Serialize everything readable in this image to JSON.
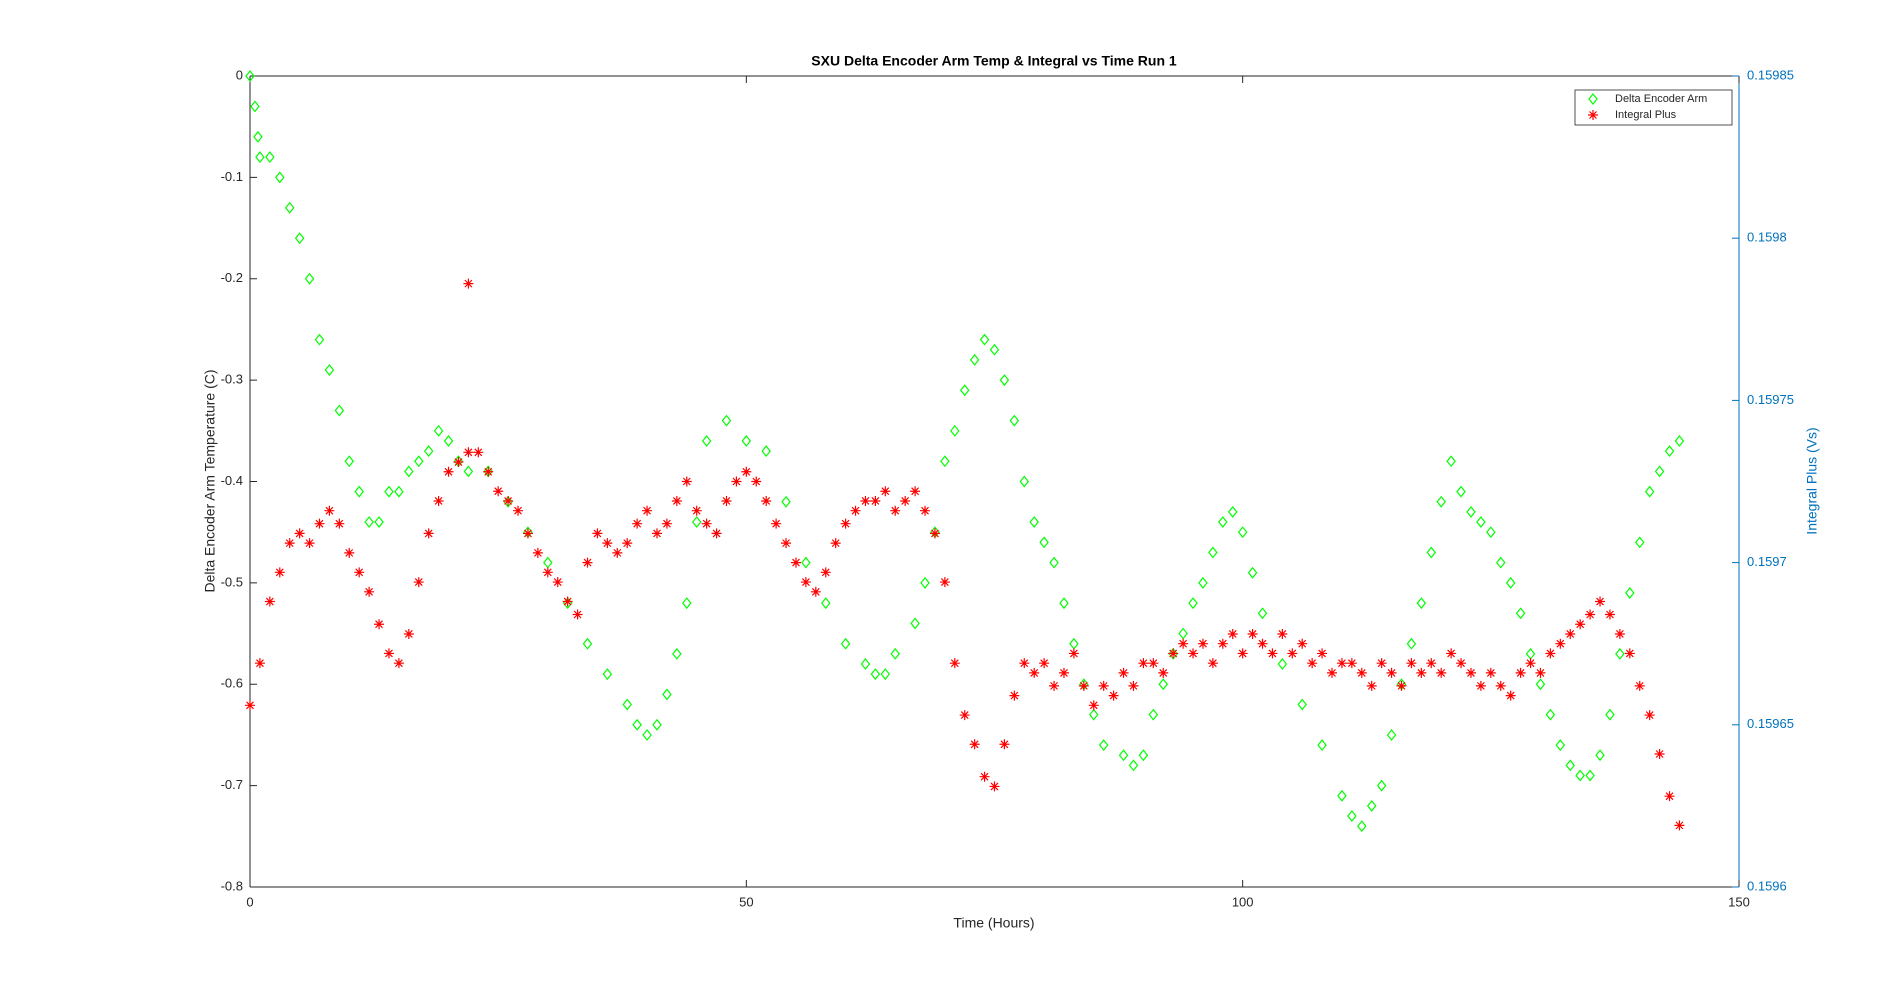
{
  "chart_data": {
    "type": "scatter",
    "title": "SXU Delta Encoder Arm Temp & Integral vs Time Run 1",
    "x_label": "Time (Hours)",
    "y_label": "Delta Encoder Arm Temperature (C)",
    "y2_label": "Integral Plus (Vs)",
    "xlim": [
      0,
      150
    ],
    "xticks": [
      0,
      50,
      100,
      150
    ],
    "ylim": [
      -0.8,
      0
    ],
    "yticks": [
      -0.8,
      -0.7,
      -0.6,
      -0.5,
      -0.4,
      -0.3,
      -0.2,
      -0.1,
      0
    ],
    "y2lim": [
      0.1596,
      0.15985
    ],
    "y2ticks": [
      0.1596,
      0.15965,
      0.1597,
      0.15975,
      0.1598,
      0.15985
    ],
    "y2_color": "#0072bd",
    "legend": "upper right",
    "series": [
      {
        "name": "Delta Encoder Arm",
        "color": "#00ff00",
        "marker": "diamond",
        "x": [
          0,
          0.5,
          0.8,
          1,
          2,
          3,
          4,
          5,
          6,
          7,
          8,
          9,
          10,
          11,
          12,
          13,
          14,
          15,
          16,
          17,
          18,
          19,
          20,
          21,
          22,
          24,
          26,
          28,
          30,
          32,
          34,
          36,
          38,
          39,
          40,
          41,
          42,
          43,
          44,
          45,
          46,
          48,
          50,
          52,
          54,
          56,
          58,
          60,
          62,
          63,
          64,
          65,
          67,
          68,
          69,
          70,
          71,
          72,
          73,
          74,
          75,
          76,
          77,
          78,
          79,
          80,
          81,
          82,
          83,
          84,
          85,
          86,
          88,
          89,
          90,
          91,
          92,
          93,
          94,
          95,
          96,
          97,
          98,
          99,
          100,
          101,
          102,
          104,
          106,
          108,
          110,
          111,
          112,
          113,
          114,
          115,
          116,
          117,
          118,
          119,
          120,
          121,
          122,
          123,
          124,
          125,
          126,
          127,
          128,
          129,
          130,
          131,
          132,
          133,
          134,
          135,
          136,
          137,
          138,
          139,
          140,
          141,
          142,
          143,
          144
        ],
        "values": [
          0,
          -0.03,
          -0.06,
          -0.08,
          -0.08,
          -0.1,
          -0.13,
          -0.16,
          -0.2,
          -0.26,
          -0.29,
          -0.33,
          -0.38,
          -0.41,
          -0.44,
          -0.44,
          -0.41,
          -0.41,
          -0.39,
          -0.38,
          -0.37,
          -0.35,
          -0.36,
          -0.38,
          -0.39,
          -0.39,
          -0.42,
          -0.45,
          -0.48,
          -0.52,
          -0.56,
          -0.59,
          -0.62,
          -0.64,
          -0.65,
          -0.64,
          -0.61,
          -0.57,
          -0.52,
          -0.44,
          -0.36,
          -0.34,
          -0.36,
          -0.37,
          -0.42,
          -0.48,
          -0.52,
          -0.56,
          -0.58,
          -0.59,
          -0.59,
          -0.57,
          -0.54,
          -0.5,
          -0.45,
          -0.38,
          -0.35,
          -0.31,
          -0.28,
          -0.26,
          -0.27,
          -0.3,
          -0.34,
          -0.4,
          -0.44,
          -0.46,
          -0.48,
          -0.52,
          -0.56,
          -0.6,
          -0.63,
          -0.66,
          -0.67,
          -0.68,
          -0.67,
          -0.63,
          -0.6,
          -0.57,
          -0.55,
          -0.52,
          -0.5,
          -0.47,
          -0.44,
          -0.43,
          -0.45,
          -0.49,
          -0.53,
          -0.58,
          -0.62,
          -0.66,
          -0.71,
          -0.73,
          -0.74,
          -0.72,
          -0.7,
          -0.65,
          -0.6,
          -0.56,
          -0.52,
          -0.47,
          -0.42,
          -0.38,
          -0.41,
          -0.43,
          -0.44,
          -0.45,
          -0.48,
          -0.5,
          -0.53,
          -0.57,
          -0.6,
          -0.63,
          -0.66,
          -0.68,
          -0.69,
          -0.69,
          -0.67,
          -0.63,
          -0.57,
          -0.51,
          -0.46,
          -0.41,
          -0.39,
          -0.37,
          -0.36
        ]
      },
      {
        "name": "Integral Plus",
        "color": "#ff0000",
        "marker": "asterisk",
        "axis": "y2",
        "x": [
          0,
          1,
          2,
          3,
          4,
          5,
          6,
          7,
          8,
          9,
          10,
          11,
          12,
          13,
          14,
          15,
          16,
          17,
          18,
          19,
          20,
          21,
          22,
          23,
          24,
          25,
          26,
          27,
          28,
          29,
          30,
          31,
          32,
          33,
          34,
          35,
          36,
          37,
          38,
          39,
          40,
          41,
          42,
          43,
          44,
          45,
          46,
          47,
          48,
          49,
          50,
          51,
          52,
          53,
          54,
          55,
          56,
          57,
          58,
          59,
          60,
          61,
          62,
          63,
          64,
          65,
          66,
          67,
          68,
          69,
          70,
          71,
          72,
          73,
          74,
          75,
          76,
          77,
          78,
          79,
          80,
          81,
          82,
          83,
          84,
          85,
          86,
          87,
          88,
          89,
          90,
          91,
          92,
          93,
          94,
          95,
          96,
          97,
          98,
          99,
          100,
          101,
          102,
          103,
          104,
          105,
          106,
          107,
          108,
          109,
          110,
          111,
          112,
          113,
          114,
          115,
          116,
          117,
          118,
          119,
          120,
          121,
          122,
          123,
          124,
          125,
          126,
          127,
          128,
          129,
          130,
          131,
          132,
          133,
          134,
          135,
          136,
          137,
          138,
          139,
          140,
          141,
          142,
          143,
          144,
          22
        ],
        "values": [
          0.159656,
          0.159669,
          0.159688,
          0.159697,
          0.159706,
          0.159709,
          0.159706,
          0.159712,
          0.159716,
          0.159712,
          0.159703,
          0.159697,
          0.159691,
          0.159681,
          0.159672,
          0.159669,
          0.159678,
          0.159694,
          0.159709,
          0.159719,
          0.159728,
          0.159731,
          0.159734,
          0.159734,
          0.159728,
          0.159722,
          0.159719,
          0.159716,
          0.159709,
          0.159703,
          0.159697,
          0.159694,
          0.159688,
          0.159684,
          0.1597,
          0.159709,
          0.159706,
          0.159703,
          0.159706,
          0.159712,
          0.159716,
          0.159709,
          0.159712,
          0.159719,
          0.159725,
          0.159716,
          0.159712,
          0.159709,
          0.159719,
          0.159725,
          0.159728,
          0.159725,
          0.159719,
          0.159712,
          0.159706,
          0.1597,
          0.159694,
          0.159691,
          0.159697,
          0.159706,
          0.159712,
          0.159716,
          0.159719,
          0.159719,
          0.159722,
          0.159716,
          0.159719,
          0.159722,
          0.159716,
          0.159709,
          0.159694,
          0.159669,
          0.159653,
          0.159644,
          0.159634,
          0.159631,
          0.159644,
          0.159659,
          0.159669,
          0.159666,
          0.159669,
          0.159662,
          0.159666,
          0.159672,
          0.159662,
          0.159656,
          0.159662,
          0.159659,
          0.159666,
          0.159662,
          0.159669,
          0.159669,
          0.159666,
          0.159672,
          0.159675,
          0.159672,
          0.159675,
          0.159669,
          0.159675,
          0.159678,
          0.159672,
          0.159678,
          0.159675,
          0.159672,
          0.159678,
          0.159672,
          0.159675,
          0.159669,
          0.159672,
          0.159666,
          0.159669,
          0.159669,
          0.159666,
          0.159662,
          0.159669,
          0.159666,
          0.159662,
          0.159669,
          0.159666,
          0.159669,
          0.159666,
          0.159672,
          0.159669,
          0.159666,
          0.159662,
          0.159666,
          0.159662,
          0.159659,
          0.159666,
          0.159669,
          0.159666,
          0.159672,
          0.159675,
          0.159678,
          0.159681,
          0.159684,
          0.159688,
          0.159684,
          0.159678,
          0.159672,
          0.159662,
          0.159653,
          0.159641,
          0.159628,
          0.159619,
          0.159786
        ]
      }
    ]
  }
}
